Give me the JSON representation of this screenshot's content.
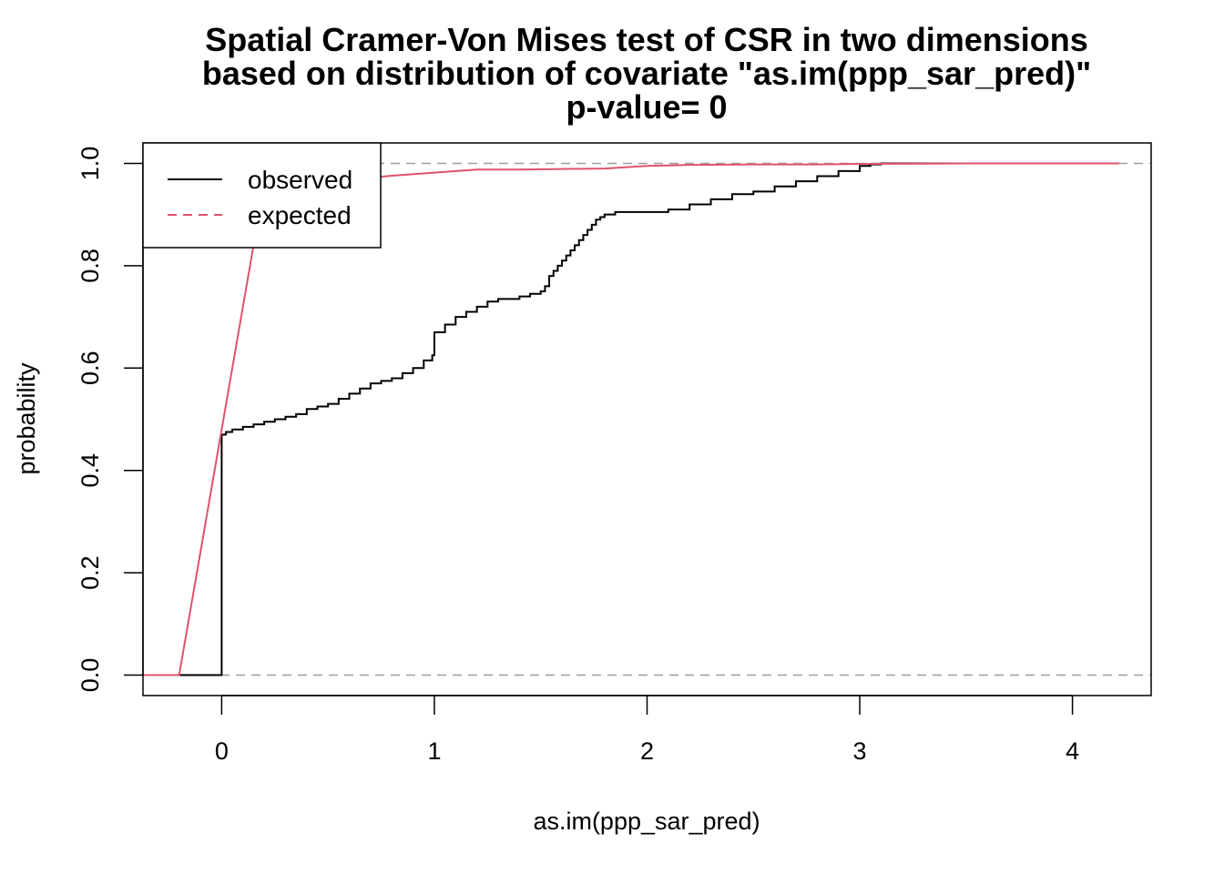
{
  "chart_data": {
    "type": "line",
    "title": "Spatial Cramer-Von Mises test of CSR in two dimensions",
    "subtitle": "based on distribution of covariate \"as.im(ppp_sar_pred)\"",
    "subtitle2": "p-value= 0",
    "xlabel": "as.im(ppp_sar_pred)",
    "ylabel": "probability",
    "xlim": [
      -0.37,
      4.37
    ],
    "ylim": [
      -0.04,
      1.04
    ],
    "xticks": [
      "0",
      "1",
      "2",
      "3",
      "4"
    ],
    "yticks": [
      "0.0",
      "0.2",
      "0.4",
      "0.6",
      "0.8",
      "1.0"
    ],
    "reference_lines": [
      0,
      1
    ],
    "colors": {
      "observed": "#000000",
      "expected": "#DF536B",
      "reference": "#9E9E9E"
    },
    "legend_position": "top-left",
    "series": [
      {
        "name": "observed",
        "step": true,
        "x": [
          -0.37,
          0.0,
          0.0,
          0.02,
          0.05,
          0.1,
          0.15,
          0.2,
          0.25,
          0.3,
          0.35,
          0.4,
          0.45,
          0.5,
          0.55,
          0.6,
          0.65,
          0.7,
          0.75,
          0.8,
          0.85,
          0.9,
          0.95,
          0.99,
          1.0,
          1.05,
          1.1,
          1.15,
          1.2,
          1.25,
          1.3,
          1.35,
          1.4,
          1.45,
          1.5,
          1.52,
          1.54,
          1.56,
          1.58,
          1.6,
          1.62,
          1.64,
          1.66,
          1.68,
          1.7,
          1.72,
          1.74,
          1.76,
          1.78,
          1.8,
          1.85,
          1.9,
          2.0,
          2.05,
          2.1,
          2.2,
          2.3,
          2.4,
          2.5,
          2.6,
          2.7,
          2.8,
          2.9,
          3.0,
          3.05,
          3.1,
          3.3,
          3.5,
          3.56
        ],
        "values": [
          0.0,
          0.0,
          0.47,
          0.475,
          0.48,
          0.485,
          0.49,
          0.495,
          0.5,
          0.505,
          0.51,
          0.52,
          0.525,
          0.53,
          0.54,
          0.55,
          0.56,
          0.57,
          0.575,
          0.58,
          0.59,
          0.6,
          0.615,
          0.625,
          0.67,
          0.685,
          0.7,
          0.71,
          0.72,
          0.73,
          0.735,
          0.735,
          0.74,
          0.745,
          0.75,
          0.76,
          0.78,
          0.79,
          0.8,
          0.81,
          0.82,
          0.83,
          0.84,
          0.85,
          0.86,
          0.87,
          0.88,
          0.89,
          0.895,
          0.9,
          0.905,
          0.905,
          0.905,
          0.905,
          0.91,
          0.92,
          0.93,
          0.94,
          0.945,
          0.955,
          0.965,
          0.975,
          0.985,
          0.995,
          0.998,
          1.0,
          1.0,
          1.0,
          1.0
        ]
      },
      {
        "name": "expected",
        "step": false,
        "x": [
          -0.37,
          -0.2,
          0.15,
          0.16,
          0.2,
          0.3,
          0.4,
          0.5,
          0.6,
          0.7,
          0.8,
          1.0,
          1.2,
          1.4,
          1.6,
          1.8,
          2.0,
          2.2,
          2.5,
          2.8,
          3.0,
          3.5,
          4.0,
          4.22
        ],
        "values": [
          0.0,
          0.0,
          0.84,
          0.85,
          0.88,
          0.91,
          0.935,
          0.955,
          0.965,
          0.972,
          0.976,
          0.982,
          0.988,
          0.988,
          0.989,
          0.99,
          0.995,
          0.997,
          0.998,
          0.998,
          0.999,
          1.0,
          1.0,
          1.0
        ]
      }
    ]
  }
}
